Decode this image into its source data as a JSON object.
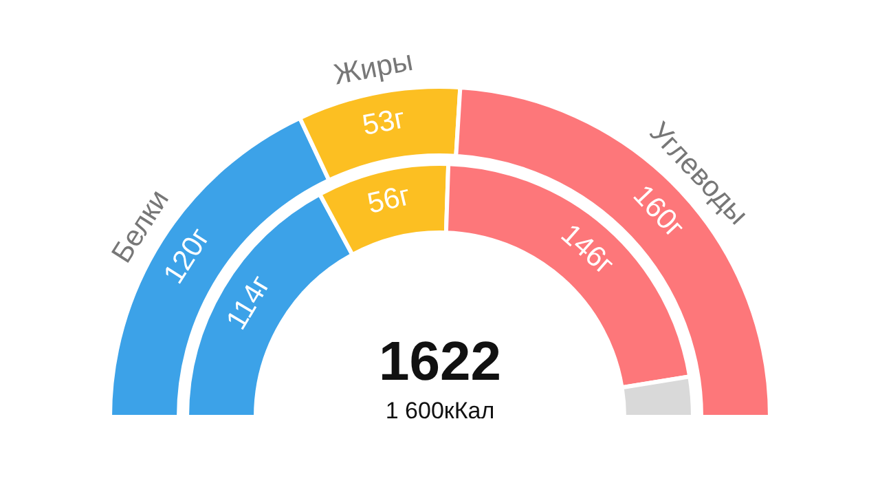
{
  "chart_data": {
    "type": "donut",
    "categories": [
      "Белки",
      "Жиры",
      "Углеводы",
      null
    ],
    "series": [
      {
        "values": [
          120,
          53,
          160,
          null
        ],
        "colors": [
          "#3ca2e8",
          "#fcbf22",
          "#fd777a",
          null
        ],
        "value_labels": [
          "120г",
          "53г",
          "160г",
          null
        ]
      },
      {
        "values": [
          114,
          56,
          146,
          17
        ],
        "colors": [
          "#3ca2e8",
          "#fcbf22",
          "#fd777a",
          "#d9d9d9"
        ],
        "value_labels": [
          "114г",
          "56г",
          "146г",
          null
        ]
      }
    ],
    "annotations": [
      "1622",
      "1 600кКал"
    ],
    "legend": false
  }
}
